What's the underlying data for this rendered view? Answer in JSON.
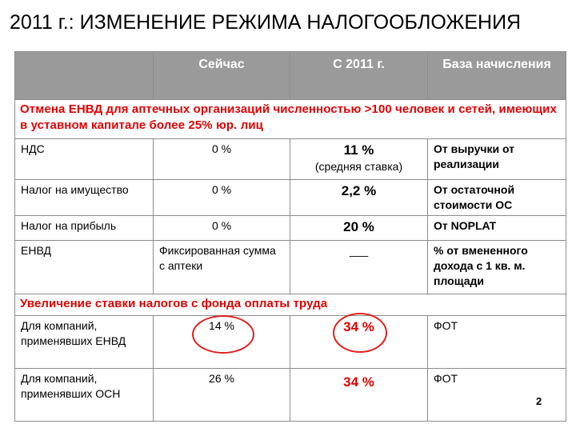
{
  "title": "2011 г.: ИЗМЕНЕНИЕ РЕЖИМА НАЛОГООБЛОЖЕНИЯ",
  "table": {
    "headers": [
      "",
      "Сейчас",
      "С 2011 г.",
      "База начисления"
    ],
    "section1": "Отмена ЕНВД для аптечных организаций численностью >100 человек и сетей, имеющих в уставном капитале более 25% юр. лиц",
    "rows1": [
      {
        "name": "НДС",
        "now": "0 %",
        "new": "11 %",
        "new_note": "(средняя ставка)",
        "base": "От выручки от реализации"
      },
      {
        "name": "Налог на имущество",
        "now": "0 %",
        "new": "2,2 %",
        "new_note": "",
        "base": "От остаточной стоимости ОС"
      },
      {
        "name": "Налог на прибыль",
        "now": "0 %",
        "new": "20 %",
        "new_note": "",
        "base": "От NOPLAT"
      },
      {
        "name": "ЕНВД",
        "now": "Фиксированная сумма с аптеки",
        "new": "___",
        "new_note": "",
        "base": "% от вмененного дохода с 1 кв. м. площади"
      }
    ],
    "section2": "Увеличение ставки налогов с фонда оплаты труда",
    "rows2": [
      {
        "name": "Для компаний, применявших ЕНВД",
        "now": "14 %",
        "new": "34 %",
        "base": "ФОТ"
      },
      {
        "name": "Для компаний, применявших ОСН",
        "now": "26 %",
        "new": "34 %",
        "base": "ФОТ"
      }
    ]
  },
  "page_number": "2",
  "colors": {
    "header_bg": "#9a9a9a",
    "accent_red": "#e10000",
    "border": "#8c8c8c"
  }
}
